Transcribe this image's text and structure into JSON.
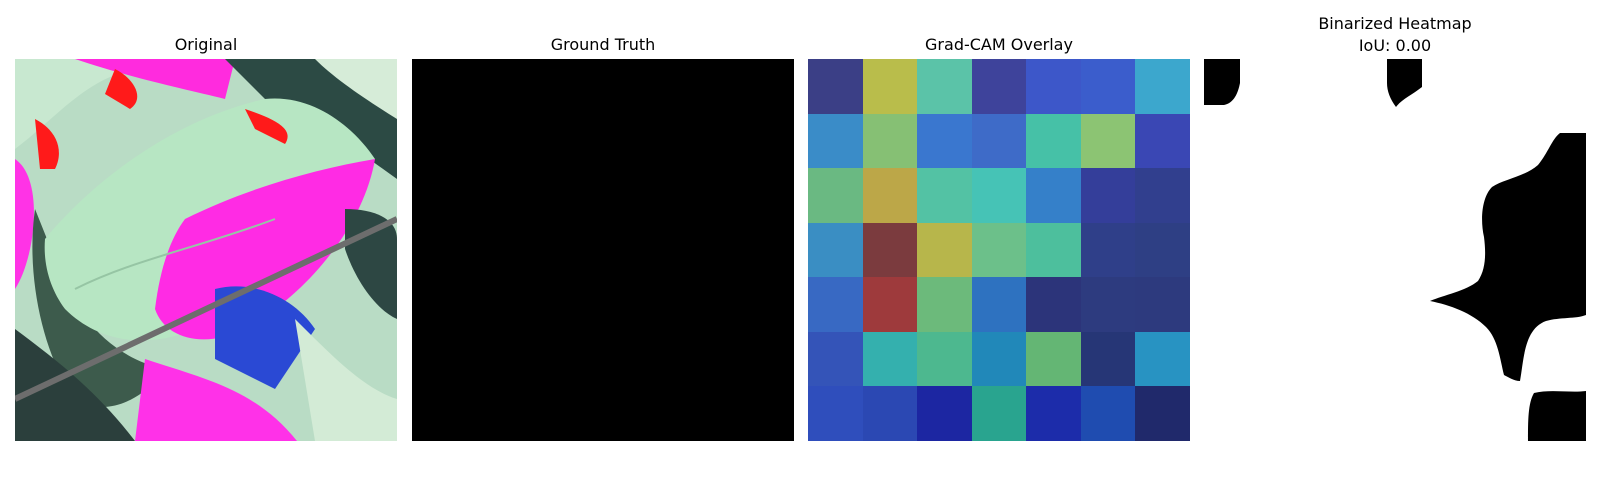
{
  "panels": [
    {
      "id": "original",
      "title": "Original"
    },
    {
      "id": "ground-truth",
      "title": "Ground Truth"
    },
    {
      "id": "gradcam",
      "title": "Grad-CAM Overlay"
    },
    {
      "id": "binarized",
      "title": "Binarized Heatmap",
      "subtitle": "IoU: 0.00"
    }
  ],
  "gradcam_grid": [
    [
      "#3b3f86",
      "#b9bd4b",
      "#5bc3a8",
      "#3e439b",
      "#3d57c9",
      "#3b5dcc",
      "#3ca7cd"
    ],
    [
      "#3a8cc8",
      "#86c074",
      "#3a77cf",
      "#3e6bc8",
      "#46c1a7",
      "#8cc473",
      "#3a47b4"
    ],
    [
      "#6ab982",
      "#bca748",
      "#53c2a4",
      "#46c3b6",
      "#3580c9",
      "#343e9a",
      "#313f8e"
    ],
    [
      "#3a8ec3",
      "#7b3b3e",
      "#b7b64b",
      "#6cc08a",
      "#4dbf9d",
      "#2f3f89",
      "#2e3f84"
    ],
    [
      "#3869c3",
      "#9e3a3c",
      "#6cba7b",
      "#2e72c0",
      "#2c347a",
      "#2d3b7f",
      "#2d3a7e"
    ],
    [
      "#3454b8",
      "#34b0ae",
      "#4db88f",
      "#2188b9",
      "#64b674",
      "#263676",
      "#2893c2"
    ],
    [
      "#2f4ebc",
      "#2b48b3",
      "#1c26a2",
      "#29a48f",
      "#1c2caa",
      "#1f4cb0",
      "#20296b"
    ]
  ]
}
